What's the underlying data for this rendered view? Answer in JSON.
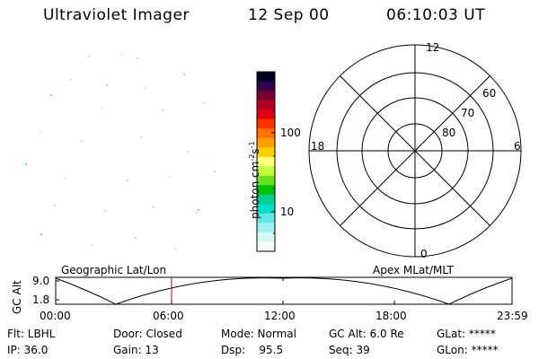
{
  "header": {
    "instrument": "Ultraviolet Imager",
    "date": "12 Sep 00",
    "time": "06:10:03 UT"
  },
  "colorbar": {
    "unit_label": "photon cm",
    "unit_exp1": "-2",
    "unit_s": "s",
    "unit_exp2": "-1",
    "tick_100": "100",
    "tick_10": "10",
    "colors": [
      "#000020",
      "#300050",
      "#7a0033",
      "#b00020",
      "#e00010",
      "#ff3000",
      "#ff7000",
      "#ffa000",
      "#ffd000",
      "#ffff80",
      "#c0ff40",
      "#60e020",
      "#00c000",
      "#00d090",
      "#00e0d0",
      "#60e8e8",
      "#a0f0f0",
      "#d8f8f8",
      "#f6fcfc"
    ]
  },
  "polar": {
    "label_top": "12",
    "label_bottom": "0",
    "label_left": "18",
    "label_right": "6",
    "ring_60": "60",
    "ring_70": "70",
    "ring_80": "80"
  },
  "timeline": {
    "left_label": "Geographic Lat/Lon",
    "right_label": "Apex  MLat/MLT",
    "axis_label": "GC Alt",
    "y_high": "9.0",
    "y_low": "1.8",
    "ticks": [
      "00:00",
      "06:00",
      "12:00",
      "18:00",
      "23:59"
    ]
  },
  "footer": {
    "flt": "Flt: LBHL",
    "ip": "IP: 36.0",
    "door": "Door: Closed",
    "gain": "Gain: 13",
    "mode": "Mode: Normal",
    "dsp": "Dsp:    95.5",
    "gc_alt": "GC Alt: 6.0 Re",
    "seq": "Seq: 39",
    "glat": "GLat: *****",
    "glon": "GLon: *****"
  }
}
